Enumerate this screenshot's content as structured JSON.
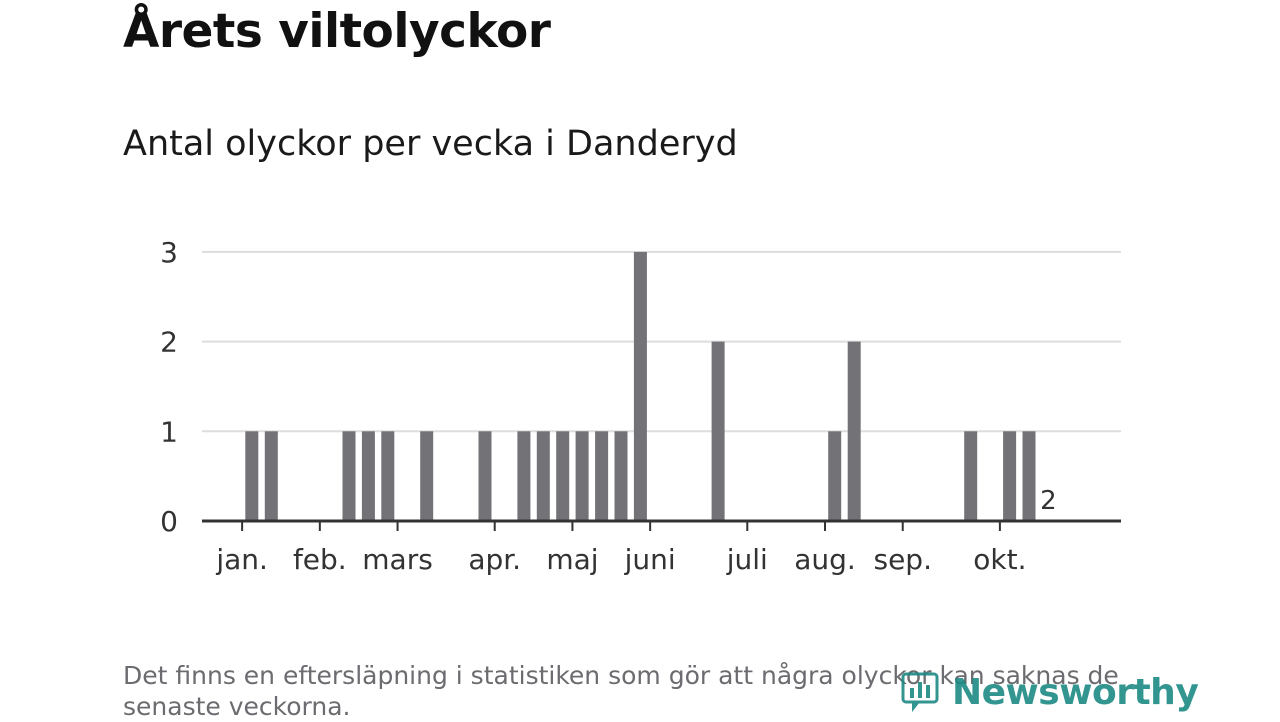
{
  "title": "Årets viltolyckor",
  "subtitle": "Antal olyckor per vecka i Danderyd",
  "footnote": "Det finns en eftersläpning i statistiken som gör att några olyckor kan saknas de senaste veckorna.",
  "logo_text": "Newsworthy",
  "colors": {
    "bar": "#737277",
    "highlight": "#0aa39a",
    "grid": "#dddddd",
    "axis": "#333333",
    "text": "#333333"
  },
  "chart_data": {
    "type": "bar",
    "title": "Årets viltolyckor",
    "subtitle": "Antal olyckor per vecka i Danderyd",
    "xlabel": "",
    "ylabel": "",
    "x_unit": "vecka",
    "ylim": [
      0,
      3
    ],
    "yticks": [
      0,
      1,
      2,
      3
    ],
    "grid": true,
    "weeks": [
      1,
      2,
      3,
      4,
      5,
      6,
      7,
      8,
      9,
      10,
      11,
      12,
      13,
      14,
      15,
      16,
      17,
      18,
      19,
      20,
      21,
      22,
      23,
      24,
      25,
      26,
      27,
      28,
      29,
      30,
      31,
      32,
      33,
      34,
      35,
      36,
      37,
      38,
      39,
      40,
      41,
      42,
      43
    ],
    "values": [
      0,
      1,
      1,
      0,
      0,
      0,
      1,
      1,
      1,
      0,
      1,
      0,
      0,
      1,
      0,
      1,
      1,
      1,
      1,
      1,
      1,
      3,
      0,
      0,
      0,
      2,
      0,
      0,
      0,
      0,
      0,
      1,
      2,
      0,
      0,
      0,
      0,
      0,
      1,
      0,
      1,
      1,
      0
    ],
    "highlight_last": 2,
    "month_labels": [
      {
        "label": "jan.",
        "week": 1
      },
      {
        "label": "feb.",
        "week": 5
      },
      {
        "label": "mars",
        "week": 9
      },
      {
        "label": "apr.",
        "week": 14
      },
      {
        "label": "maj",
        "week": 18
      },
      {
        "label": "juni",
        "week": 22
      },
      {
        "label": "juli",
        "week": 27
      },
      {
        "label": "aug.",
        "week": 31
      },
      {
        "label": "sep.",
        "week": 35
      },
      {
        "label": "okt.",
        "week": 40
      }
    ]
  }
}
